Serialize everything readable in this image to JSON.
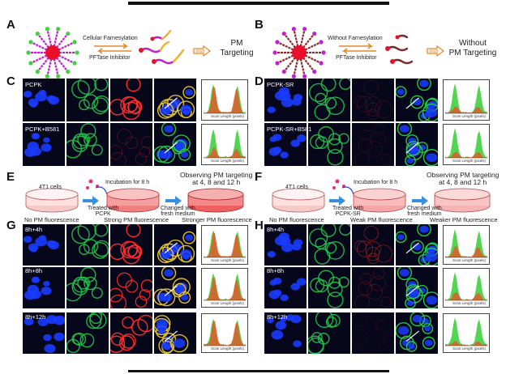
{
  "panels": {
    "A": {
      "letter": "A",
      "arrow_top": "Cellular Farnesylation",
      "arrow_bottom": "PFTase Inhibitor",
      "result": "PM\nTargeting"
    },
    "B": {
      "letter": "B",
      "arrow_top": "Without Farnesylation",
      "arrow_bottom": "PFTase Inhibitor",
      "result": "Without\nPM Targeting"
    },
    "C": {
      "letter": "C",
      "row1": "PCPK",
      "row2": "PCPK+B581"
    },
    "D": {
      "letter": "D",
      "row1": "PCPK-SR",
      "row2": "PCPK-SR+B581"
    },
    "E": {
      "letter": "E",
      "dish": "4T1 cells",
      "treat": "Treated with\nPCPK",
      "incubation": "Incubation for 8 h",
      "changed": "Changed with\nfresh medium",
      "observe": "Observing PM targeting\nat 4, 8 and 12 h",
      "cap1": "No PM fluorescence",
      "cap2": "Strong PM fluorescence",
      "cap3": "Stronger PM fluorescence"
    },
    "F": {
      "letter": "F",
      "dish": "4T1 cells",
      "treat": "Treated with\nPCPK-SR",
      "incubation": "Incubation for 8 h",
      "changed": "Changed with\nfresh medium",
      "observe": "Observing PM targeting\nat 4, 8 and 12 h",
      "cap1": "No PM fluorescence",
      "cap2": "Weak PM fluorescence",
      "cap3": "Weaker PM fluorescence"
    },
    "G": {
      "letter": "G",
      "rows": [
        "8h+4h",
        "8h+8h",
        "8h+12h"
      ]
    },
    "H": {
      "letter": "H",
      "rows": [
        "8h+4h",
        "8h+8h",
        "8h+12h"
      ]
    }
  },
  "hist_xlabel": "Scan Length (pixels)",
  "colors": {
    "nucleus": "#1a3cff",
    "membrane": "#22c84a",
    "probe": "#ff2a2a",
    "merge_bg": "#06071a",
    "hist_green": "#3fd13f",
    "hist_red": "#e05a2a",
    "star_center": "#e8102a",
    "star_arm": "#c21fd1"
  }
}
